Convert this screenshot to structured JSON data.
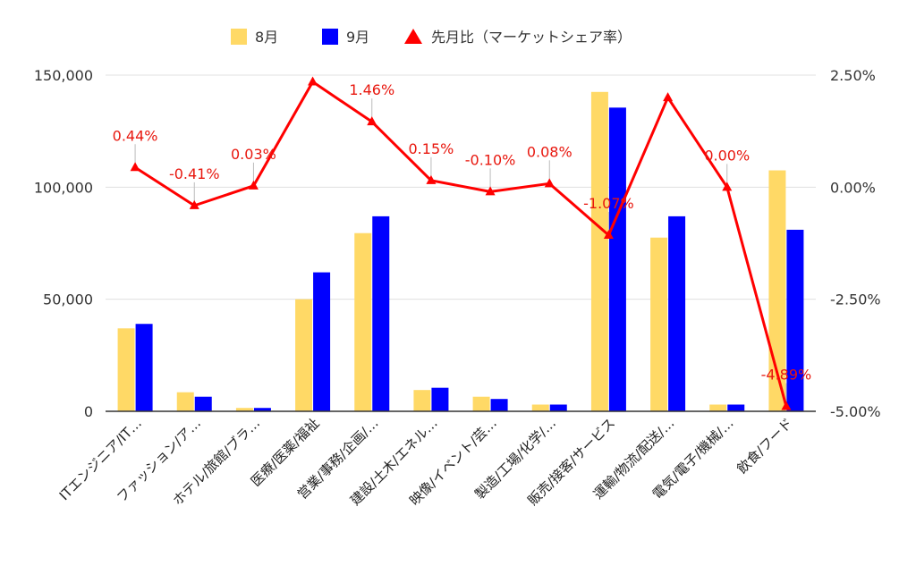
{
  "chart_data": {
    "type": "bar",
    "categories": [
      "ITエンジニア/IT…",
      "ファッション/ア…",
      "ホテル/旅館/ブラ…",
      "医療/医薬/福祉",
      "営業/事務/企画/…",
      "建設/土木/エネル…",
      "映像/イベント/芸…",
      "製造/工場/化学/…",
      "販売/接客/サービス",
      "運輸/物流/配送/…",
      "電気/電子/機械/…",
      "飲食/フード"
    ],
    "series": [
      {
        "name": "8月",
        "type": "bar",
        "axis": "left",
        "color": "#ffd966",
        "values": [
          37000,
          8500,
          1500,
          50000,
          79500,
          9500,
          6500,
          3000,
          142500,
          77500,
          3000,
          107500
        ]
      },
      {
        "name": "9月",
        "type": "bar",
        "axis": "left",
        "color": "#0000ff",
        "values": [
          39000,
          6500,
          1500,
          62000,
          87000,
          10500,
          5500,
          3000,
          135500,
          87000,
          3000,
          81000
        ]
      },
      {
        "name": "先月比（マーケットシェア率）",
        "type": "line",
        "axis": "right",
        "color": "#ff0000",
        "values": [
          0.44,
          -0.41,
          0.03,
          2.35,
          1.46,
          0.15,
          -0.1,
          0.08,
          -1.07,
          2.0,
          0.0,
          -4.89
        ],
        "labels": [
          "0.44%",
          "-0.41%",
          "0.03%",
          "",
          "1.46%",
          "0.15%",
          "-0.10%",
          "0.08%",
          "-1.07%",
          "",
          "0.00%",
          "-4.89%"
        ]
      }
    ],
    "y_left": {
      "min": 0,
      "max": 150000,
      "ticks": [
        "0",
        "50,000",
        "100,000",
        "150,000"
      ]
    },
    "y_right": {
      "min": -5,
      "max": 2.5,
      "ticks": [
        "-5.00%",
        "-2.50%",
        "0.00%",
        "2.50%"
      ]
    },
    "legend_position": "top-center",
    "grid": true
  }
}
